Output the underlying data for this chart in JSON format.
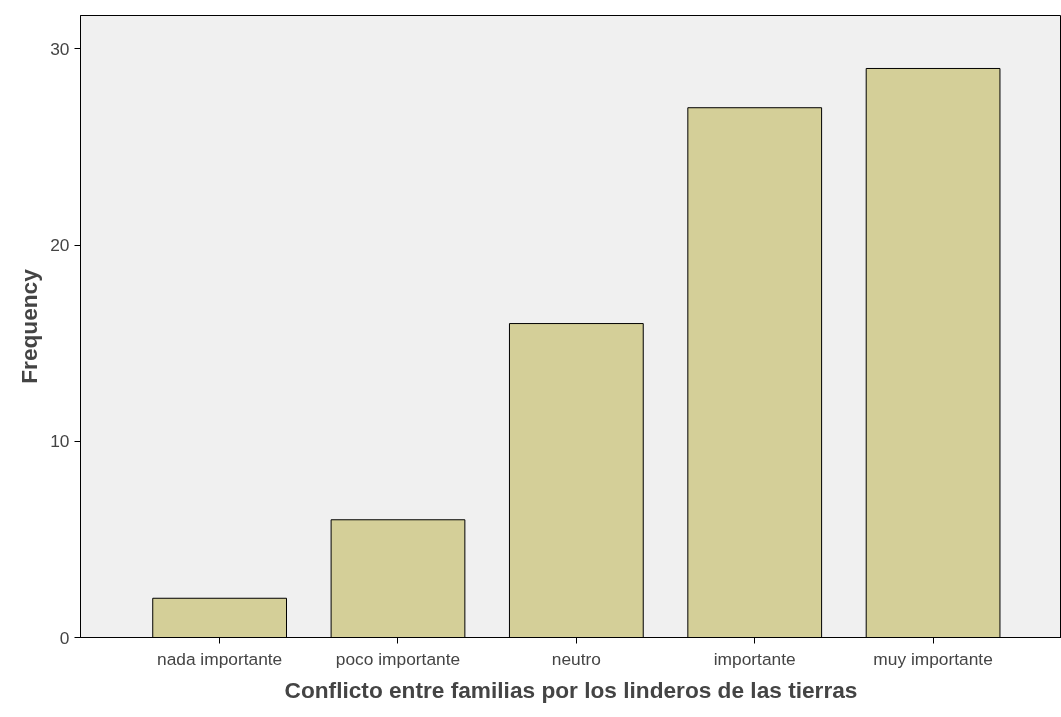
{
  "chart_data": {
    "type": "bar",
    "xlabel": "Conflicto entre familias por los linderos de las tierras",
    "ylabel": "Frequency",
    "categories": [
      "nada importante",
      "poco importante",
      "neutro",
      "importante",
      "muy importante"
    ],
    "values": [
      2,
      6,
      16,
      27,
      29
    ],
    "color": "#d4cf98",
    "ylim": [
      0,
      31.7
    ],
    "yticks": [
      0,
      10,
      20,
      30
    ],
    "grid": false
  }
}
